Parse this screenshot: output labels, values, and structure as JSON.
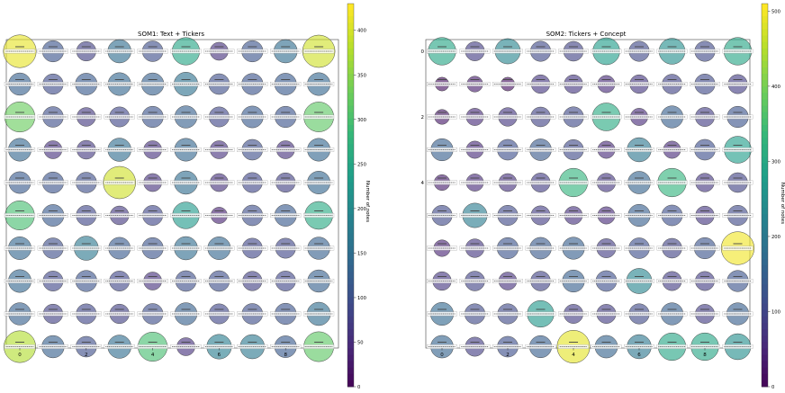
{
  "chart_data": [
    {
      "type": "heatmap",
      "title": "SOM1: Text + Tickers",
      "xlabel": "",
      "ylabel": "",
      "x_ticks": [
        "0",
        "2",
        "4",
        "6",
        "8"
      ],
      "y_ticks": [],
      "grid": false,
      "colorbar": {
        "label": "Number of notes",
        "range": [
          0,
          430
        ],
        "ticks": [
          "0",
          "50",
          "100",
          "150",
          "200",
          "250",
          "300",
          "350",
          "400"
        ],
        "colormap": "viridis"
      },
      "grid_size": [
        10,
        10
      ],
      "counts": [
        [
          415,
          110,
          80,
          150,
          100,
          250,
          60,
          110,
          150,
          400
        ],
        [
          130,
          95,
          120,
          140,
          130,
          160,
          100,
          110,
          120,
          140
        ],
        [
          330,
          100,
          70,
          90,
          110,
          130,
          90,
          120,
          110,
          320
        ],
        [
          140,
          60,
          70,
          150,
          60,
          140,
          60,
          100,
          60,
          140
        ],
        [
          120,
          110,
          100,
          400,
          60,
          150,
          60,
          90,
          80,
          140
        ],
        [
          300,
          120,
          90,
          70,
          90,
          230,
          40,
          100,
          120,
          260
        ],
        [
          140,
          100,
          170,
          120,
          110,
          150,
          140,
          90,
          90,
          130
        ],
        [
          140,
          90,
          110,
          90,
          60,
          100,
          100,
          80,
          90,
          130
        ],
        [
          130,
          80,
          90,
          80,
          100,
          130,
          90,
          100,
          110,
          150
        ],
        [
          380,
          130,
          100,
          150,
          300,
          60,
          180,
          170,
          120,
          320
        ]
      ]
    },
    {
      "type": "heatmap",
      "title": "SOM2: Tickers + Concept",
      "xlabel": "",
      "ylabel": "",
      "x_ticks": [
        "0",
        "2",
        "4",
        "6",
        "8"
      ],
      "y_ticks": [
        "0",
        "2",
        "4"
      ],
      "grid": false,
      "colorbar": {
        "label": "Number of notes",
        "range": [
          0,
          510
        ],
        "ticks": [
          "0",
          "100",
          "200",
          "300",
          "400",
          "500"
        ],
        "colormap": "viridis"
      },
      "grid_size": [
        10,
        10
      ],
      "counts": [
        [
          300,
          90,
          230,
          110,
          100,
          280,
          110,
          250,
          110,
          300
        ],
        [
          20,
          40,
          20,
          80,
          80,
          60,
          80,
          100,
          110,
          90
        ],
        [
          30,
          60,
          80,
          100,
          110,
          310,
          60,
          150,
          90,
          130
        ],
        [
          150,
          60,
          120,
          140,
          110,
          60,
          200,
          60,
          120,
          280
        ],
        [
          40,
          60,
          70,
          90,
          330,
          80,
          160,
          330,
          80,
          100
        ],
        [
          110,
          210,
          110,
          90,
          70,
          60,
          150,
          120,
          80,
          110
        ],
        [
          50,
          80,
          130,
          140,
          150,
          90,
          120,
          100,
          130,
          500
        ],
        [
          80,
          100,
          70,
          100,
          150,
          120,
          230,
          90,
          90,
          130
        ],
        [
          170,
          110,
          110,
          270,
          90,
          90,
          110,
          150,
          90,
          150
        ],
        [
          160,
          90,
          120,
          150,
          490,
          160,
          200,
          300,
          300,
          250
        ]
      ]
    }
  ]
}
